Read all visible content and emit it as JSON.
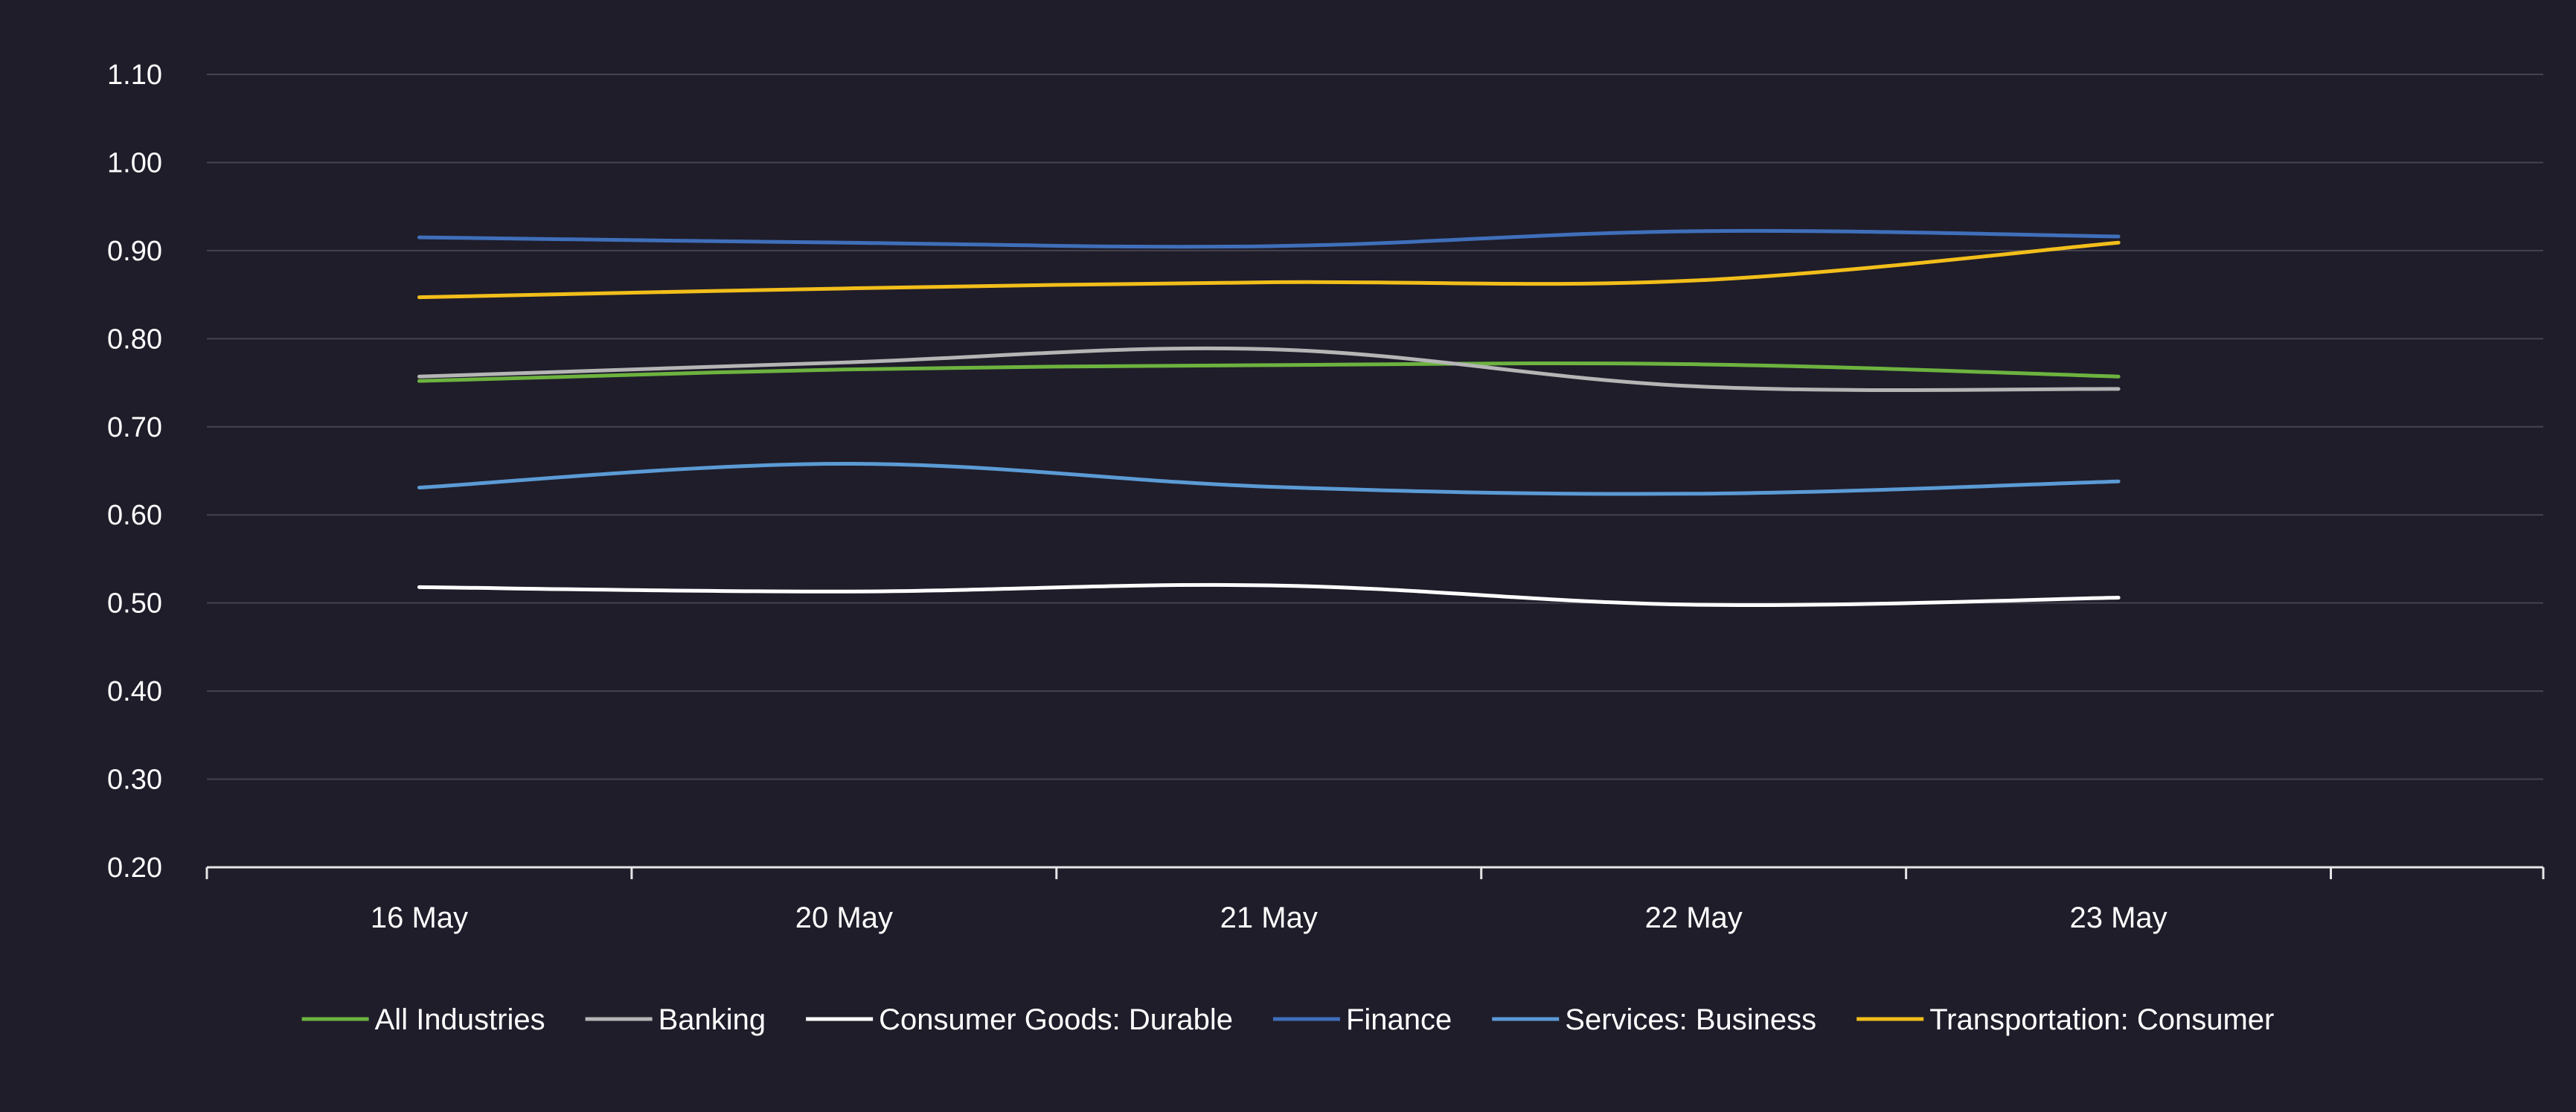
{
  "chart_data": {
    "type": "line",
    "title": "",
    "xlabel": "",
    "ylabel": "",
    "categories": [
      "16 May",
      "20 May",
      "21 May",
      "22 May",
      "23 May"
    ],
    "ylim": [
      0.2,
      1.1
    ],
    "yticks": [
      "0.20",
      "0.30",
      "0.40",
      "0.50",
      "0.60",
      "0.70",
      "0.80",
      "0.90",
      "1.00",
      "1.10"
    ],
    "grid": true,
    "legend_position": "bottom",
    "series": [
      {
        "name": "All Industries",
        "color": "#6db33f",
        "values": [
          0.752,
          0.765,
          0.77,
          0.771,
          0.757
        ]
      },
      {
        "name": "Banking",
        "color": "#b5b5b5",
        "values": [
          0.757,
          0.773,
          0.788,
          0.746,
          0.743
        ]
      },
      {
        "name": "Consumer Goods: Durable",
        "color": "#ffffff",
        "values": [
          0.518,
          0.513,
          0.52,
          0.498,
          0.506
        ]
      },
      {
        "name": "Finance",
        "color": "#3f6fba",
        "values": [
          0.915,
          0.909,
          0.905,
          0.922,
          0.916
        ]
      },
      {
        "name": "Services: Business",
        "color": "#5b9bd5",
        "values": [
          0.631,
          0.658,
          0.632,
          0.624,
          0.638
        ]
      },
      {
        "name": "Transportation: Consumer",
        "color": "#f2be1a",
        "values": [
          0.847,
          0.857,
          0.864,
          0.866,
          0.909
        ]
      }
    ]
  }
}
